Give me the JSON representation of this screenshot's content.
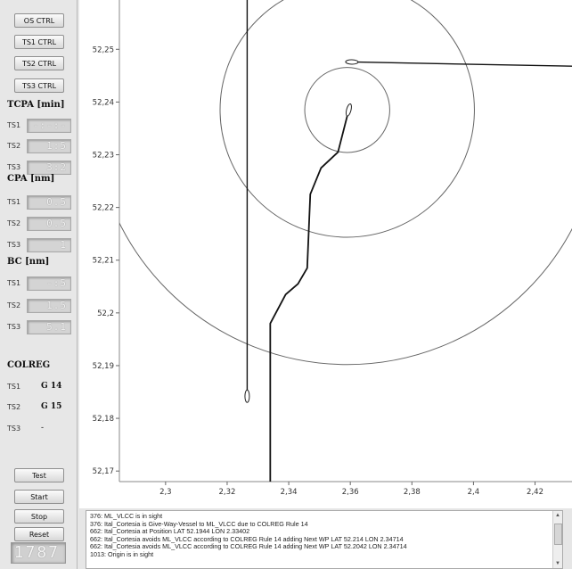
{
  "sidebar": {
    "ctrl_buttons": [
      "OS CTRL",
      "TS1 CTRL",
      "TS2 CTRL",
      "TS3 CTRL"
    ],
    "tcpa": {
      "title": "TCPA [min]",
      "rows": [
        {
          "label": "TS1",
          "value": "-:-:-"
        },
        {
          "label": "TS2",
          "value": "1:5"
        },
        {
          "label": "TS3",
          "value": "3:2"
        }
      ]
    },
    "cpa": {
      "title": "CPA [nm]",
      "rows": [
        {
          "label": "TS1",
          "value": "0.5"
        },
        {
          "label": "TS2",
          "value": "0.5"
        },
        {
          "label": "TS3",
          "value": "1"
        }
      ]
    },
    "bc": {
      "title": "BC [nm]",
      "rows": [
        {
          "label": "TS1",
          "value": "-:5"
        },
        {
          "label": "TS2",
          "value": "1.5"
        },
        {
          "label": "TS3",
          "value": "5.1"
        }
      ]
    },
    "colreg": {
      "title": "COLREG",
      "rows": [
        {
          "label": "TS1",
          "value": "G 14"
        },
        {
          "label": "TS2",
          "value": "G 15"
        },
        {
          "label": "TS3",
          "value": "-"
        }
      ]
    },
    "buttons": {
      "test": "Test",
      "start": "Start",
      "stop": "Stop",
      "reset": "Reset"
    },
    "counter": "1787"
  },
  "chart_data": {
    "type": "scatter",
    "xlim": [
      2.285,
      2.432
    ],
    "ylim": [
      52.168,
      52.258
    ],
    "x_ticks": [
      "2,3",
      "2,32",
      "2,34",
      "2,36",
      "2,38",
      "2,4",
      "2,42"
    ],
    "x_tick_values": [
      2.3,
      2.32,
      2.34,
      2.36,
      2.38,
      2.4,
      2.42
    ],
    "y_ticks": [
      "52,17",
      "52,18",
      "52,19",
      "52,2",
      "52,21",
      "52,22",
      "52,23",
      "52,24",
      "52,25"
    ],
    "y_tick_values": [
      52.17,
      52.18,
      52.19,
      52.2,
      52.21,
      52.22,
      52.23,
      52.24,
      52.25
    ],
    "grid": false,
    "range_circles": {
      "center": [
        2.359,
        52.2385
      ],
      "radii": [
        0.0138,
        0.0413,
        0.0826
      ]
    },
    "tracks": [
      {
        "name": "TS1",
        "points": [
          [
            2.3265,
            52.2655
          ],
          [
            2.3265,
            52.1842
          ]
        ],
        "vessel_at": 1
      },
      {
        "name": "TS2",
        "points": [
          [
            2.3605,
            52.2476
          ],
          [
            2.432,
            52.2468
          ]
        ],
        "vessel_at": 0
      },
      {
        "name": "OS",
        "points": [
          [
            2.334,
            52.165
          ],
          [
            2.334,
            52.198
          ],
          [
            2.339,
            52.2035
          ],
          [
            2.343,
            52.2055
          ],
          [
            2.346,
            52.2085
          ],
          [
            2.347,
            52.2225
          ],
          [
            2.3505,
            52.2275
          ],
          [
            2.356,
            52.2305
          ],
          [
            2.3595,
            52.2385
          ]
        ],
        "vessel_at": 8
      }
    ]
  },
  "log": {
    "lines": [
      "376: ML_VLCC is in sight",
      "376: Ital_Cortesia is Give-Way-Vessel to ML_VLCC due to COLREG Rule 14",
      "662: Ital_Cortesia at Position LAT 52.1944 LON 2.33402",
      "662: Ital_Cortesia avoids ML_VLCC according to COLREG Rule 14 adding Next WP LAT 52.214 LON 2.34714",
      "662: Ital_Cortesia avoids ML_VLCC according to COLREG Rule 14 adding Next WP LAT 52.2042 LON 2.34714",
      "1013: Origin is in sight"
    ]
  },
  "colors": {
    "ring": "#666666",
    "track": "#111111",
    "background": "#e6e6e6"
  }
}
